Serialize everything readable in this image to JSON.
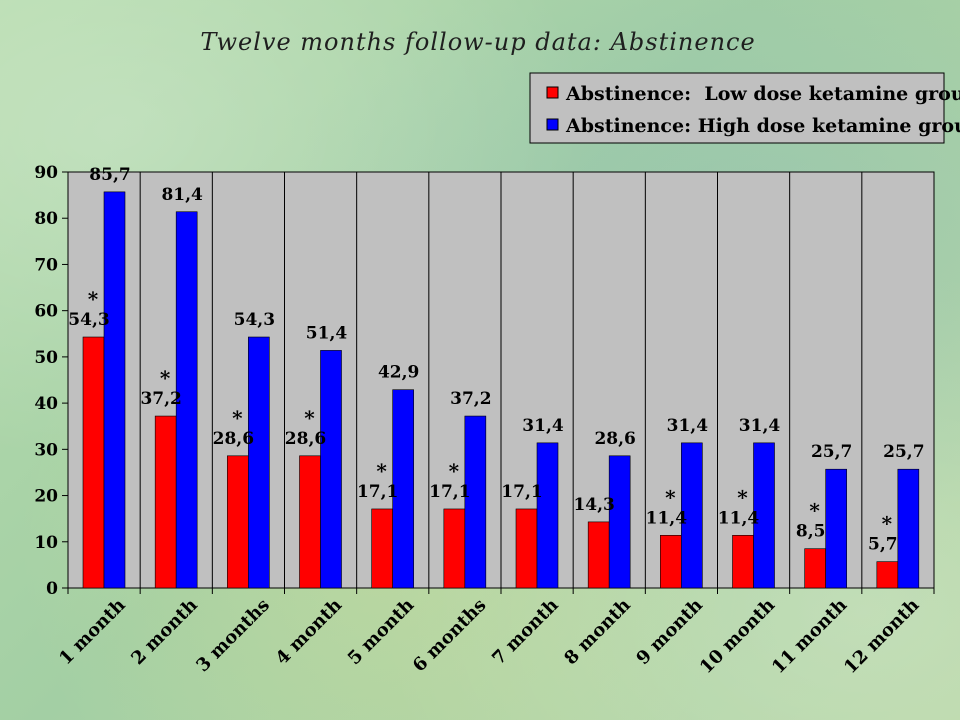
{
  "chart_data": {
    "type": "bar",
    "title": "Twelve months follow-up data: Abstinence",
    "xlabel": "",
    "ylabel": "",
    "ylim": [
      0,
      90
    ],
    "yticks": [
      0,
      10,
      20,
      30,
      40,
      50,
      60,
      70,
      80,
      90
    ],
    "grid": "vertical-separators",
    "legend_position": "top-right",
    "categories": [
      "1 month",
      "2 month",
      "3 months",
      "4 month",
      "5 month",
      "6 months",
      "7 month",
      "8 month",
      "9 month",
      "10 month",
      "11 month",
      "12 month"
    ],
    "series": [
      {
        "name": "Abstinence:  Low dose ketamine group",
        "color": "#ff0000",
        "values": [
          54.3,
          37.2,
          28.6,
          28.6,
          17.1,
          17.1,
          17.1,
          14.3,
          11.4,
          11.4,
          8.5,
          5.7
        ],
        "labels": [
          "54,3",
          "37,2",
          "28,6",
          "28,6",
          "17,1",
          "17,1",
          "17,1",
          "14,3",
          "11,4",
          "11,4",
          "8,5",
          "5,7"
        ],
        "significance": [
          true,
          true,
          true,
          true,
          true,
          true,
          false,
          false,
          true,
          true,
          true,
          true
        ]
      },
      {
        "name": "Abstinence: High dose ketamine group",
        "color": "#0000ff",
        "values": [
          85.7,
          81.4,
          54.3,
          51.4,
          42.9,
          37.2,
          31.4,
          28.6,
          31.4,
          31.4,
          25.7,
          25.7
        ],
        "labels": [
          "85,7",
          "81,4",
          "54,3",
          "51,4",
          "42,9",
          "37,2",
          "31,4",
          "28,6",
          "31,4",
          "31,4",
          "25,7",
          "25,7"
        ]
      }
    ],
    "significance_marker": "*",
    "plot_background": "#c0c0c0"
  }
}
